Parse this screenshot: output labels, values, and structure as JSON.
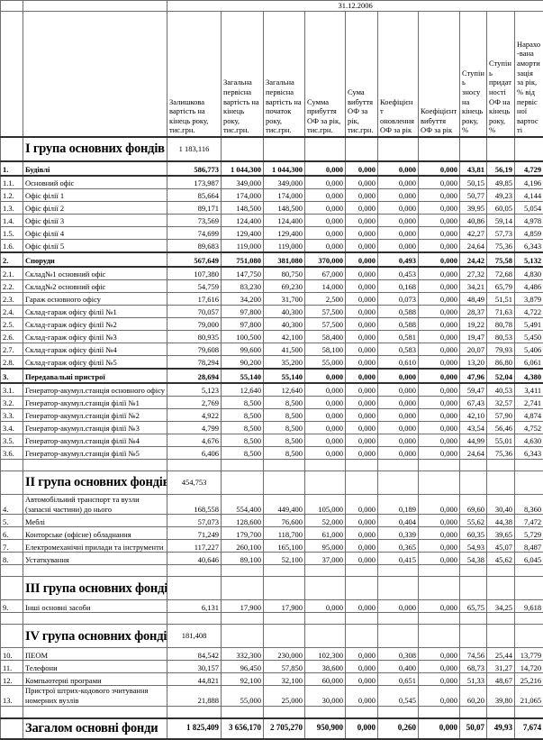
{
  "meta": {
    "date": "31.12.2006"
  },
  "colors": {
    "text": "#000000",
    "grid": "#6e6e6e",
    "background": "#ffffff"
  },
  "columns": [
    "Залишкова вартість на кінець року, тис.грн.",
    "Загальна первісна вартість на кінець року, тис.грн.",
    "Загальна первісна вартість на початок року, тис.грн.",
    "Сумма прибуття ОФ за рік, тис.грн.",
    "Сума вибуття ОФ за рік, тис.грн.",
    "Коефіцієнт оновлення ОФ за рік",
    "Коефіцієнт вибуття ОФ за рік",
    "Ступінь зносу на кінець року, %",
    "Ступінь придатності ОФ на кінець року, %",
    "Нарахо-вана амортизація за рік, % від первісної вартості"
  ],
  "rows": [
    {
      "t": "group",
      "n": "",
      "name": "I група основних фондів",
      "v": [
        "1 183,116"
      ]
    },
    {
      "t": "sub",
      "n": "1.",
      "name": "Будівлі",
      "v": [
        "586,773",
        "1 044,300",
        "1 044,300",
        "0,000",
        "0,000",
        "0,000",
        "0,000",
        "43,81",
        "56,19",
        "4,729"
      ]
    },
    {
      "t": "item",
      "n": "1.1.",
      "name": "Основний офіс",
      "v": [
        "173,987",
        "349,000",
        "349,000",
        "0,000",
        "0,000",
        "0,000",
        "0,000",
        "50,15",
        "49,85",
        "4,196"
      ]
    },
    {
      "t": "item",
      "n": "1.2.",
      "name": "Офіс філії 1",
      "v": [
        "85,664",
        "174,000",
        "174,000",
        "0,000",
        "0,000",
        "0,000",
        "0,000",
        "50,77",
        "49,23",
        "4,144"
      ]
    },
    {
      "t": "item",
      "n": "1.3.",
      "name": "Офіс філії 2",
      "v": [
        "89,171",
        "148,500",
        "148,500",
        "0,000",
        "0,000",
        "0,000",
        "0,000",
        "39,95",
        "60,05",
        "5,054"
      ]
    },
    {
      "t": "item",
      "n": "1.4.",
      "name": "Офіс філії 3",
      "v": [
        "73,569",
        "124,400",
        "124,400",
        "0,000",
        "0,000",
        "0,000",
        "0,000",
        "40,86",
        "59,14",
        "4,978"
      ]
    },
    {
      "t": "item",
      "n": "1.5.",
      "name": "Офіс філії 4",
      "v": [
        "74,699",
        "129,400",
        "129,400",
        "0,000",
        "0,000",
        "0,000",
        "0,000",
        "42,27",
        "57,73",
        "4,859"
      ]
    },
    {
      "t": "item",
      "n": "1.6.",
      "name": "Офіс філії 5",
      "v": [
        "89,683",
        "119,000",
        "119,000",
        "0,000",
        "0,000",
        "0,000",
        "0,000",
        "24,64",
        "75,36",
        "6,343"
      ]
    },
    {
      "t": "sub",
      "n": "2.",
      "name": "Споруди",
      "v": [
        "567,649",
        "751,080",
        "381,080",
        "370,000",
        "0,000",
        "0,493",
        "0,000",
        "24,42",
        "75,58",
        "5,132"
      ]
    },
    {
      "t": "item",
      "n": "2.1.",
      "name": "Склад№1 основний офіс",
      "v": [
        "107,380",
        "147,750",
        "80,750",
        "67,000",
        "0,000",
        "0,453",
        "0,000",
        "27,32",
        "72,68",
        "4,830"
      ]
    },
    {
      "t": "item",
      "n": "2.2.",
      "name": "Склад№2 основний офіс",
      "v": [
        "54,759",
        "83,230",
        "69,230",
        "14,000",
        "0,000",
        "0,168",
        "0,000",
        "34,21",
        "65,79",
        "4,486"
      ]
    },
    {
      "t": "item",
      "n": "2.3.",
      "name": "Гараж основного офісу",
      "v": [
        "17,616",
        "34,200",
        "31,700",
        "2,500",
        "0,000",
        "0,073",
        "0,000",
        "48,49",
        "51,51",
        "3,879"
      ]
    },
    {
      "t": "item",
      "n": "2.4.",
      "name": "Склад-гараж офісу філії №1",
      "v": [
        "70,057",
        "97,800",
        "40,300",
        "57,500",
        "0,000",
        "0,588",
        "0,000",
        "28,37",
        "71,63",
        "4,722"
      ]
    },
    {
      "t": "item",
      "n": "2.5.",
      "name": "Склад-гараж офісу філії №2",
      "v": [
        "79,000",
        "97,800",
        "40,300",
        "57,500",
        "0,000",
        "0,588",
        "0,000",
        "19,22",
        "80,78",
        "5,491"
      ]
    },
    {
      "t": "item",
      "n": "2.6.",
      "name": "Склад-гараж офісу філії №3",
      "v": [
        "80,935",
        "100,500",
        "42,100",
        "58,400",
        "0,000",
        "0,581",
        "0,000",
        "19,47",
        "80,53",
        "5,450"
      ]
    },
    {
      "t": "item",
      "n": "2.7.",
      "name": "Склад-гараж офісу філії №4",
      "v": [
        "79,608",
        "99,600",
        "41,500",
        "58,100",
        "0,000",
        "0,583",
        "0,000",
        "20,07",
        "79,93",
        "5,406"
      ]
    },
    {
      "t": "item",
      "n": "2.8.",
      "name": "Склад-гараж офісу філії №5",
      "v": [
        "78,294",
        "90,200",
        "35,200",
        "55,000",
        "0,000",
        "0,610",
        "0,000",
        "13,20",
        "86,80",
        "6,061"
      ]
    },
    {
      "t": "sub",
      "n": "3.",
      "name": "Передавальні пристрої",
      "v": [
        "28,694",
        "55,140",
        "55,140",
        "0,000",
        "0,000",
        "0,000",
        "0,000",
        "47,96",
        "52,04",
        "4,380"
      ]
    },
    {
      "t": "item",
      "n": "3.1.",
      "name": "Генератор-акумул.станція основного офісу",
      "v": [
        "5,123",
        "12,640",
        "12,640",
        "0,000",
        "0,000",
        "0,000",
        "0,000",
        "59,47",
        "40,53",
        "3,411"
      ]
    },
    {
      "t": "item",
      "n": "3.2.",
      "name": "Генератор-акумул.станція філії №1",
      "v": [
        "2,769",
        "8,500",
        "8,500",
        "0,000",
        "0,000",
        "0,000",
        "0,000",
        "67,43",
        "32,57",
        "2,741"
      ]
    },
    {
      "t": "item",
      "n": "3.3.",
      "name": "Генератор-акумул.станція філії №2",
      "v": [
        "4,922",
        "8,500",
        "8,500",
        "0,000",
        "0,000",
        "0,000",
        "0,000",
        "42,10",
        "57,90",
        "4,874"
      ]
    },
    {
      "t": "item",
      "n": "3.4.",
      "name": "Генератор-акумул.станція філії №3",
      "v": [
        "4,799",
        "8,500",
        "8,500",
        "0,000",
        "0,000",
        "0,000",
        "0,000",
        "43,54",
        "56,46",
        "4,752"
      ]
    },
    {
      "t": "item",
      "n": "3.5.",
      "name": "Генератор-акумул.станція філії №4",
      "v": [
        "4,676",
        "8,500",
        "8,500",
        "0,000",
        "0,000",
        "0,000",
        "0,000",
        "44,99",
        "55,01",
        "4,630"
      ]
    },
    {
      "t": "item",
      "n": "3.6.",
      "name": "Генератор-акумул.станція філії №5",
      "v": [
        "6,406",
        "8,500",
        "8,500",
        "0,000",
        "0,000",
        "0,000",
        "0,000",
        "24,64",
        "75,36",
        "6,343"
      ]
    },
    {
      "t": "empty"
    },
    {
      "t": "group",
      "n": "",
      "name": "II група основних фондів",
      "v": [
        "454,753"
      ]
    },
    {
      "t": "item",
      "n": "4.",
      "name": "Автомобільний транспорт та вузли (запасні частини) до нього",
      "wrap": true,
      "v": [
        "168,558",
        "554,400",
        "449,400",
        "105,000",
        "0,000",
        "0,189",
        "0,000",
        "69,60",
        "30,40",
        "8,360"
      ]
    },
    {
      "t": "item",
      "n": "5.",
      "name": "Меблі",
      "v": [
        "57,073",
        "128,600",
        "76,600",
        "52,000",
        "0,000",
        "0,404",
        "0,000",
        "55,62",
        "44,38",
        "7,472"
      ]
    },
    {
      "t": "item",
      "n": "6.",
      "name": "Конторське (офісне) обладнання",
      "v": [
        "71,249",
        "179,700",
        "118,700",
        "61,000",
        "0,000",
        "0,339",
        "0,000",
        "60,35",
        "39,65",
        "5,729"
      ]
    },
    {
      "t": "item",
      "n": "7.",
      "name": "Електромеханічні прилади та інструменти",
      "v": [
        "117,227",
        "260,100",
        "165,100",
        "95,000",
        "0,000",
        "0,365",
        "0,000",
        "54,93",
        "45,07",
        "8,487"
      ]
    },
    {
      "t": "item",
      "n": "8.",
      "name": "Устаткування",
      "v": [
        "40,646",
        "89,100",
        "52,100",
        "37,000",
        "0,000",
        "0,415",
        "0,000",
        "54,38",
        "45,62",
        "6,045"
      ]
    },
    {
      "t": "empty"
    },
    {
      "t": "group",
      "n": "",
      "name": "III група основних фондів",
      "v": []
    },
    {
      "t": "item",
      "n": "9.",
      "name": "Інші основні засоби",
      "v": [
        "6,131",
        "17,900",
        "17,900",
        "0,000",
        "0,000",
        "0,000",
        "0,000",
        "65,75",
        "34,25",
        "9,618"
      ]
    },
    {
      "t": "empty"
    },
    {
      "t": "group",
      "n": "",
      "name": "IV група основних фондів",
      "v": [
        "181,408"
      ]
    },
    {
      "t": "item",
      "n": "10.",
      "name": "ПЕОМ",
      "v": [
        "84,542",
        "332,300",
        "230,000",
        "102,300",
        "0,000",
        "0,308",
        "0,000",
        "74,56",
        "25,44",
        "13,779"
      ]
    },
    {
      "t": "item",
      "n": "11.",
      "name": "Телефони",
      "v": [
        "30,157",
        "96,450",
        "57,850",
        "38,600",
        "0,000",
        "0,400",
        "0,000",
        "68,73",
        "31,27",
        "14,720"
      ]
    },
    {
      "t": "item",
      "n": "12.",
      "name": "Компьютерні програми",
      "v": [
        "44,821",
        "92,100",
        "32,100",
        "60,000",
        "0,000",
        "0,651",
        "0,000",
        "51,33",
        "48,67",
        "25,216"
      ]
    },
    {
      "t": "item",
      "n": "13.",
      "name": "Пристрої штрих-кодового зчитування номерних вузлів",
      "wrap": true,
      "v": [
        "21,888",
        "55,000",
        "25,000",
        "30,000",
        "0,000",
        "0,545",
        "0,000",
        "60,20",
        "39,80",
        "21,065"
      ]
    },
    {
      "t": "empty"
    },
    {
      "t": "total",
      "n": "",
      "name": "Загалом основні фонди",
      "v": [
        "1 825,409",
        "3 656,170",
        "2 705,270",
        "950,900",
        "0,000",
        "0,260",
        "0,000",
        "50,07",
        "49,93",
        "7,674"
      ]
    }
  ]
}
